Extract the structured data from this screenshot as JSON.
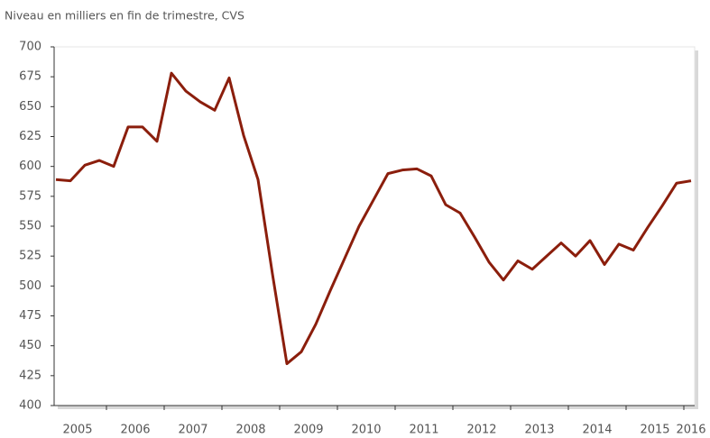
{
  "chart_data": {
    "type": "line",
    "title": "Niveau en milliers en fin de trimestre, CVS",
    "categories": [
      "2005",
      null,
      null,
      null,
      "2006",
      null,
      null,
      null,
      "2007",
      null,
      null,
      null,
      "2008",
      null,
      null,
      null,
      "2009",
      null,
      null,
      null,
      "2010",
      null,
      null,
      null,
      "2011",
      null,
      null,
      null,
      "2012",
      null,
      null,
      null,
      "2013",
      null,
      null,
      null,
      "2014",
      null,
      null,
      null,
      "2015",
      null,
      null,
      null,
      "2016"
    ],
    "series": [
      {
        "name": "Niveau",
        "color": "#8b1e0c",
        "values": [
          589,
          588,
          601,
          605,
          600,
          633,
          633,
          621,
          678,
          663,
          654,
          647,
          674,
          626,
          589,
          510,
          435,
          445,
          468,
          496,
          523,
          550,
          572,
          594,
          597,
          598,
          592,
          568,
          561,
          541,
          520,
          505,
          521,
          514,
          525,
          536,
          525,
          538,
          518,
          535,
          530,
          549,
          567,
          586,
          588
        ]
      }
    ],
    "ylim": [
      400,
      700
    ],
    "yticks": [
      400,
      425,
      450,
      475,
      500,
      525,
      550,
      575,
      600,
      625,
      650,
      675,
      700
    ]
  }
}
